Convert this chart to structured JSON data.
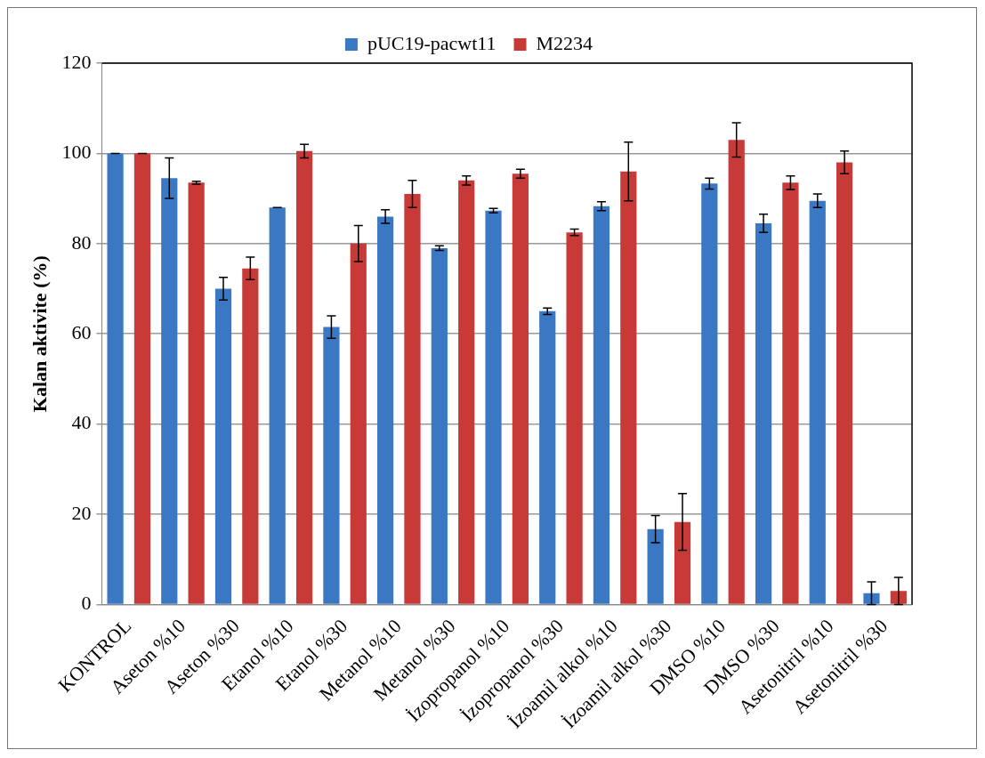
{
  "chart_data": {
    "type": "bar",
    "ylabel": "Kalan aktivite (%)",
    "categories": [
      "KONTROL",
      "Aseton %10",
      "Aseton %30",
      "Etanol %10",
      "Etanol %30",
      "Metanol %10",
      "Metanol %30",
      "İzopropanol %10",
      "İzopropanol %30",
      "İzoamil alkol %10",
      "İzoamil alkol %30",
      "DMSO %10",
      "DMSO %30",
      "Asetonitril %10",
      "Asetonitril %30"
    ],
    "series": [
      {
        "name": "pUC19-pacwt11",
        "color": "#3a78c3",
        "values": [
          100,
          94.5,
          70,
          88,
          61.5,
          86,
          79,
          87.3,
          65,
          88.3,
          16.7,
          93.3,
          84.5,
          89.5,
          2.5
        ],
        "errors": [
          0,
          4.5,
          2.5,
          0,
          2.5,
          1.5,
          0.5,
          0.5,
          0.7,
          1,
          3,
          1.2,
          2,
          1.5,
          2.5
        ]
      },
      {
        "name": "M2234",
        "color": "#c83a38",
        "values": [
          100,
          93.5,
          74.5,
          100.5,
          80,
          91,
          94,
          95.5,
          82.5,
          96,
          18.3,
          103,
          93.5,
          98,
          3
        ],
        "errors": [
          0,
          0.3,
          2.5,
          1.5,
          4,
          3,
          1,
          1,
          0.7,
          6.5,
          6.3,
          3.8,
          1.5,
          2.5,
          3
        ]
      }
    ],
    "ylim": [
      0,
      120
    ],
    "yticks": [
      0,
      20,
      40,
      60,
      80,
      100,
      120
    ],
    "grid": "y",
    "legend": "top"
  }
}
